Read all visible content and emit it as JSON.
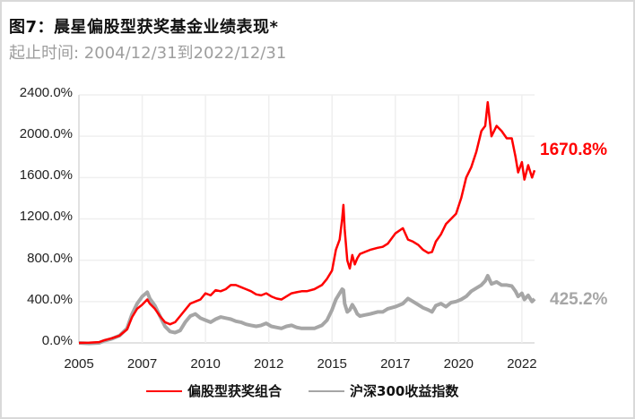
{
  "title": "图7：晨星偏股型获奖基金业绩表现*",
  "subtitle": "起止时间: 2004/12/31到2022/12/31",
  "colors": {
    "portfolio": "#ff0000",
    "index": "#a6a6a6",
    "grid": "#efefef",
    "border": "#d9d9d9"
  },
  "end_labels": {
    "portfolio": "1670.8%",
    "index": "425.2%"
  },
  "legend": [
    {
      "label": "偏股型获奖组合",
      "color": "#ff0000"
    },
    {
      "label": "沪深300收益指数",
      "color": "#a6a6a6"
    }
  ],
  "chart_data": {
    "type": "line",
    "title": "图7：晨星偏股型获奖基金业绩表现*",
    "subtitle": "起止时间: 2004/12/31到2022/12/31",
    "xlabel": "",
    "ylabel": "",
    "ylim": [
      0,
      2400
    ],
    "yticks": [
      "0.0%",
      "400.0%",
      "800.0%",
      "1200.0%",
      "1600.0%",
      "2000.0%",
      "2400.0%"
    ],
    "xticks": [
      "2005",
      "2007",
      "2010",
      "2012",
      "2015",
      "2017",
      "2020",
      "2022"
    ],
    "xtick_positions": [
      2005.0,
      2007.5,
      2010.0,
      2012.5,
      2015.0,
      2017.5,
      2020.0,
      2022.5
    ],
    "xlim": [
      2005.0,
      2023.0
    ],
    "grid": true,
    "legend_position": "bottom",
    "series": [
      {
        "name": "偏股型获奖组合",
        "end_value": 1670.8,
        "x": [
          2005.0,
          2005.4,
          2005.8,
          2006.0,
          2006.3,
          2006.6,
          2006.9,
          2007.1,
          2007.3,
          2007.5,
          2007.7,
          2007.8,
          2008.0,
          2008.2,
          2008.4,
          2008.6,
          2008.8,
          2009.0,
          2009.2,
          2009.4,
          2009.6,
          2009.8,
          2010.0,
          2010.2,
          2010.4,
          2010.6,
          2010.8,
          2011.0,
          2011.2,
          2011.4,
          2011.6,
          2011.8,
          2012.0,
          2012.2,
          2012.4,
          2012.6,
          2012.8,
          2013.0,
          2013.2,
          2013.4,
          2013.6,
          2013.8,
          2014.0,
          2014.3,
          2014.6,
          2014.8,
          2015.0,
          2015.15,
          2015.3,
          2015.4,
          2015.45,
          2015.5,
          2015.6,
          2015.7,
          2015.8,
          2015.9,
          2016.0,
          2016.1,
          2016.3,
          2016.5,
          2016.8,
          2017.0,
          2017.2,
          2017.5,
          2017.8,
          2018.0,
          2018.2,
          2018.4,
          2018.6,
          2018.8,
          2018.95,
          2019.1,
          2019.3,
          2019.5,
          2019.7,
          2019.9,
          2020.1,
          2020.3,
          2020.5,
          2020.7,
          2020.9,
          2021.05,
          2021.15,
          2021.3,
          2021.5,
          2021.7,
          2021.9,
          2022.1,
          2022.25,
          2022.35,
          2022.5,
          2022.6,
          2022.75,
          2022.9,
          2023.0
        ],
        "y": [
          0,
          2,
          8,
          25,
          45,
          70,
          130,
          250,
          330,
          370,
          420,
          380,
          330,
          260,
          200,
          180,
          200,
          260,
          320,
          380,
          400,
          420,
          480,
          460,
          510,
          500,
          520,
          560,
          560,
          540,
          520,
          500,
          470,
          460,
          480,
          450,
          430,
          420,
          450,
          480,
          490,
          500,
          500,
          520,
          560,
          620,
          700,
          900,
          1000,
          1200,
          1335,
          1100,
          800,
          720,
          850,
          760,
          820,
          860,
          880,
          900,
          920,
          930,
          960,
          1060,
          1110,
          1000,
          980,
          950,
          900,
          870,
          880,
          980,
          1050,
          1150,
          1200,
          1250,
          1400,
          1600,
          1700,
          1850,
          2050,
          2100,
          2330,
          2000,
          2100,
          2050,
          1980,
          1980,
          1800,
          1650,
          1750,
          1580,
          1720,
          1600,
          1670.8
        ]
      },
      {
        "name": "沪深300收益指数",
        "end_value": 425.2,
        "x": [
          2005.0,
          2005.4,
          2005.8,
          2006.0,
          2006.3,
          2006.6,
          2006.9,
          2007.1,
          2007.3,
          2007.5,
          2007.7,
          2007.8,
          2008.0,
          2008.2,
          2008.4,
          2008.6,
          2008.8,
          2009.0,
          2009.2,
          2009.4,
          2009.6,
          2009.8,
          2010.0,
          2010.2,
          2010.4,
          2010.6,
          2010.8,
          2011.0,
          2011.2,
          2011.4,
          2011.6,
          2011.8,
          2012.0,
          2012.2,
          2012.4,
          2012.6,
          2012.8,
          2013.0,
          2013.2,
          2013.4,
          2013.6,
          2013.8,
          2014.0,
          2014.3,
          2014.6,
          2014.8,
          2015.0,
          2015.15,
          2015.3,
          2015.4,
          2015.45,
          2015.5,
          2015.6,
          2015.7,
          2015.8,
          2015.9,
          2016.0,
          2016.1,
          2016.3,
          2016.5,
          2016.8,
          2017.0,
          2017.2,
          2017.5,
          2017.8,
          2018.0,
          2018.2,
          2018.4,
          2018.6,
          2018.8,
          2018.95,
          2019.1,
          2019.3,
          2019.5,
          2019.7,
          2019.9,
          2020.1,
          2020.3,
          2020.5,
          2020.7,
          2020.9,
          2021.05,
          2021.15,
          2021.3,
          2021.5,
          2021.7,
          2021.9,
          2022.1,
          2022.25,
          2022.35,
          2022.5,
          2022.6,
          2022.75,
          2022.9,
          2023.0
        ],
        "y": [
          0,
          -5,
          0,
          20,
          40,
          70,
          140,
          280,
          380,
          450,
          490,
          430,
          360,
          260,
          160,
          110,
          100,
          120,
          200,
          260,
          280,
          240,
          220,
          200,
          230,
          250,
          240,
          230,
          210,
          200,
          180,
          170,
          160,
          170,
          190,
          160,
          150,
          140,
          160,
          170,
          150,
          140,
          140,
          140,
          170,
          220,
          320,
          420,
          480,
          520,
          510,
          380,
          300,
          320,
          370,
          330,
          280,
          260,
          270,
          280,
          300,
          300,
          330,
          350,
          380,
          430,
          400,
          370,
          340,
          320,
          300,
          360,
          380,
          350,
          390,
          400,
          420,
          450,
          500,
          530,
          560,
          600,
          650,
          570,
          590,
          560,
          560,
          550,
          500,
          450,
          480,
          420,
          460,
          400,
          425.2
        ]
      }
    ]
  }
}
